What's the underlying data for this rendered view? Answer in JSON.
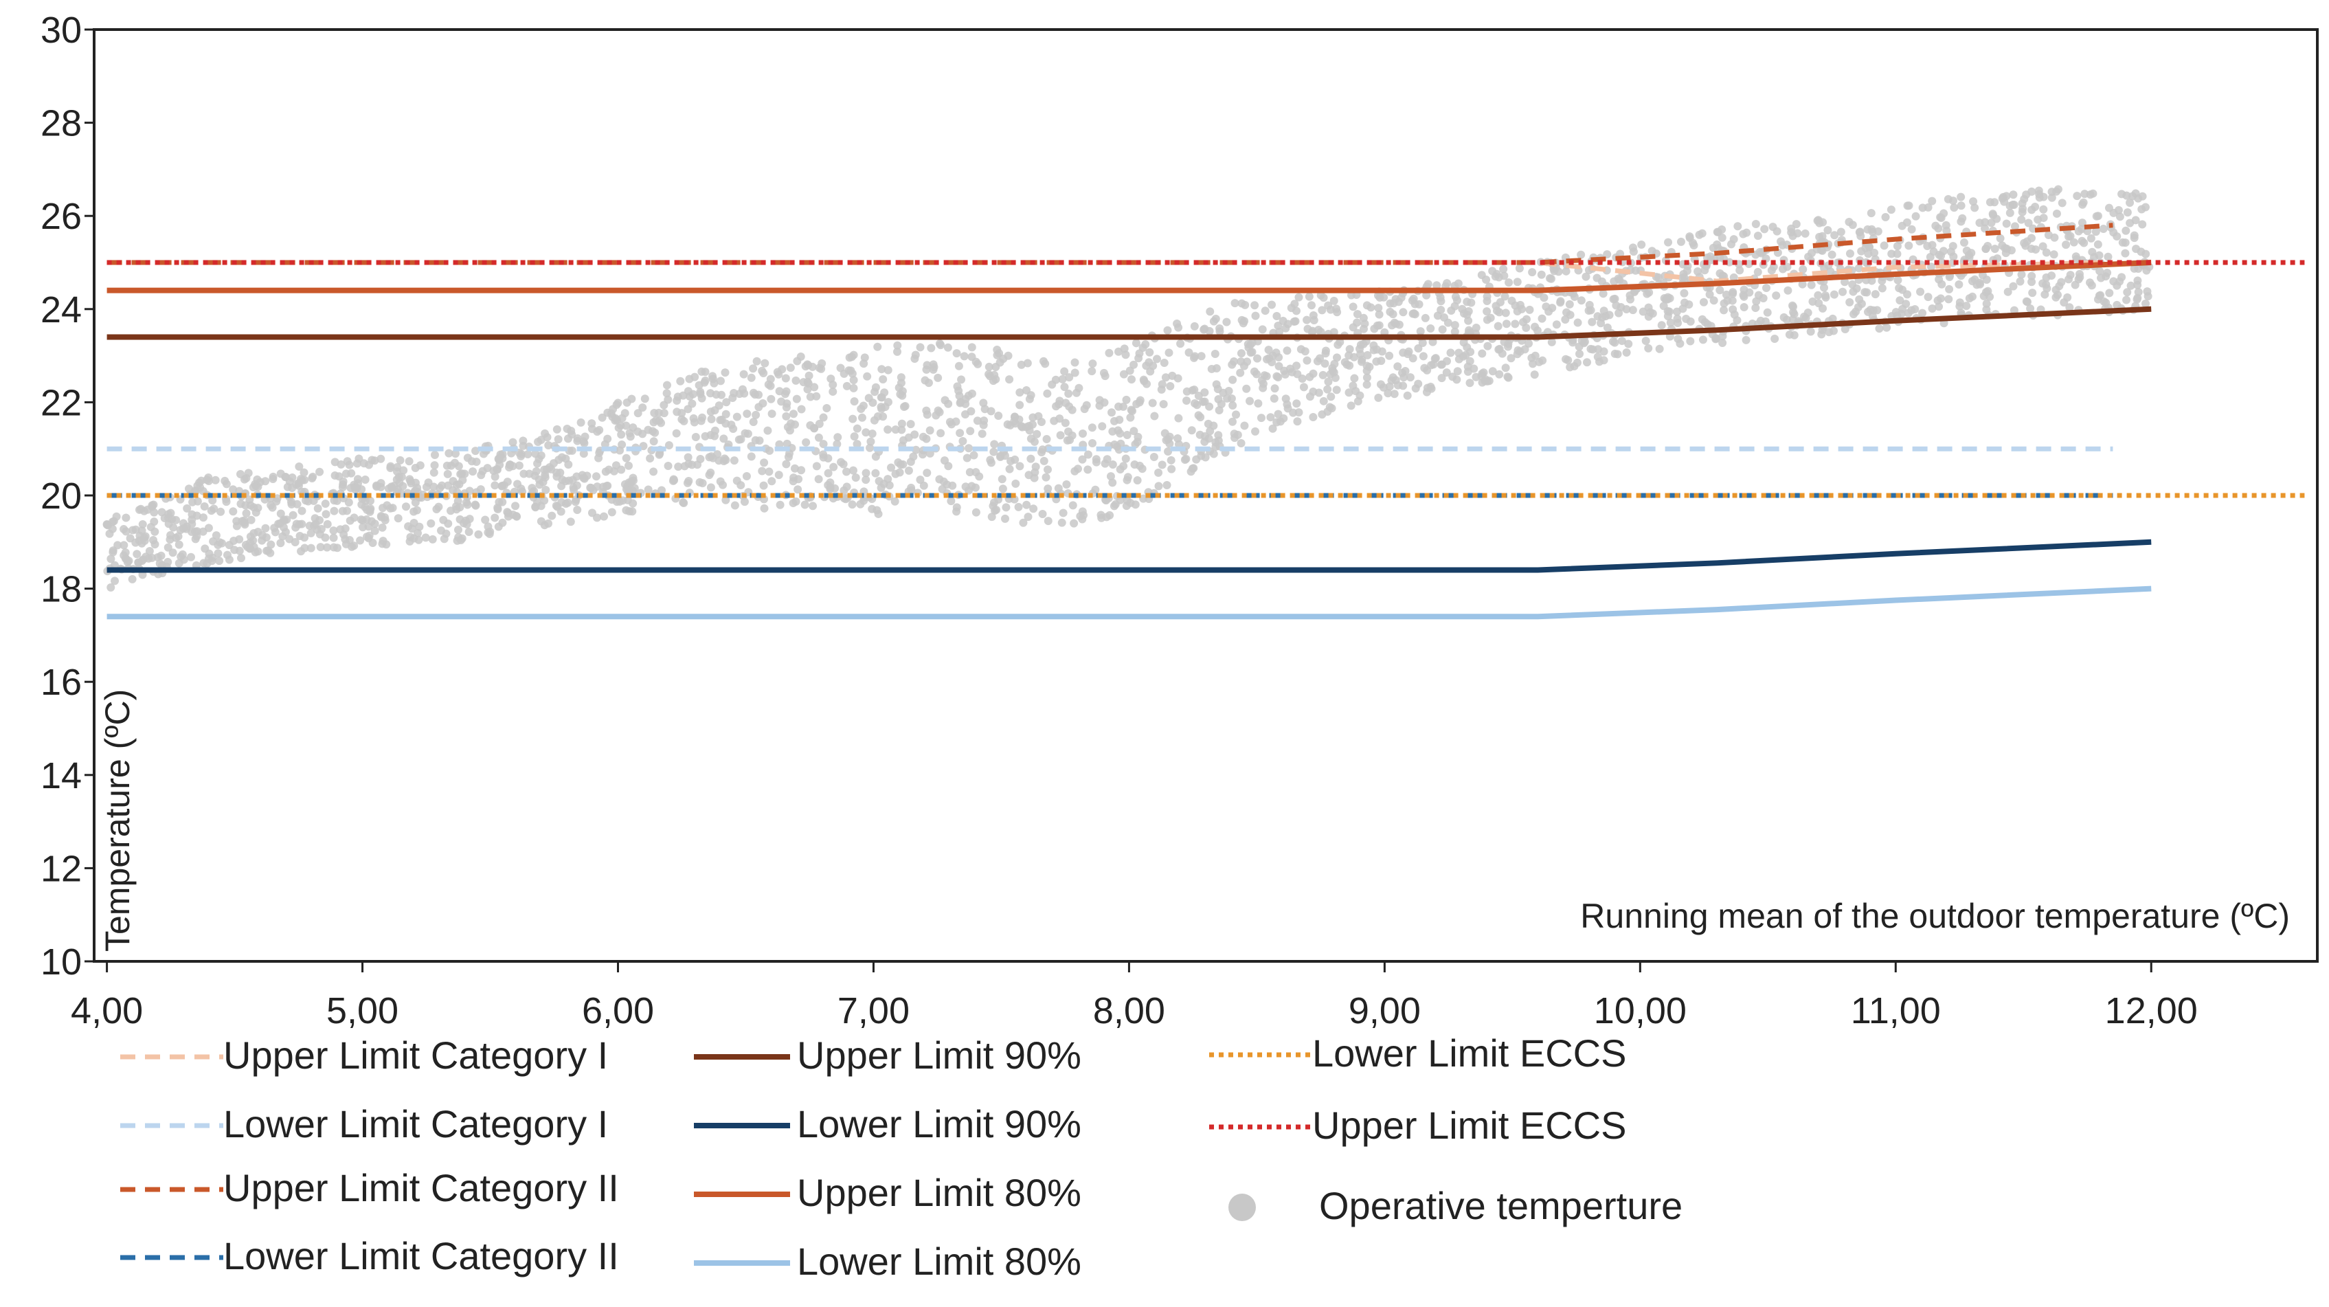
{
  "chart_data": {
    "type": "line",
    "title": "",
    "xlabel": "Running mean of the outdoor temperature (ºC)",
    "ylabel": "Temperature (ºC)",
    "xlim": [
      3.95,
      12.65
    ],
    "ylim": [
      10,
      30
    ],
    "x_ticks": [
      4,
      5,
      6,
      7,
      8,
      9,
      10,
      11,
      12
    ],
    "x_tick_labels": [
      "4,00",
      "5,00",
      "6,00",
      "7,00",
      "8,00",
      "9,00",
      "10,00",
      "11,00",
      "12,00"
    ],
    "y_ticks": [
      10,
      12,
      14,
      16,
      18,
      20,
      22,
      24,
      26,
      28,
      30
    ],
    "y_tick_labels": [
      "10",
      "12",
      "14",
      "16",
      "18",
      "20",
      "22",
      "24",
      "26",
      "28",
      "30"
    ],
    "series": [
      {
        "name": "Upper Limit Category I",
        "color": "#f3c3a6",
        "style": "dashed",
        "x": [
          4.0,
          9.6,
          10.3,
          11.0,
          11.85
        ],
        "y": [
          25.0,
          25.0,
          24.6,
          24.9,
          25.0
        ]
      },
      {
        "name": "Lower Limit Category I",
        "color": "#bcd5ee",
        "style": "dashed",
        "x": [
          4.0,
          11.85
        ],
        "y": [
          21.0,
          21.0
        ]
      },
      {
        "name": "Upper Limit Category II",
        "color": "#c9582a",
        "style": "dashed",
        "x": [
          4.0,
          9.6,
          10.3,
          11.0,
          11.85
        ],
        "y": [
          25.0,
          25.0,
          25.2,
          25.5,
          25.8
        ]
      },
      {
        "name": "Lower Limit Category II",
        "color": "#2a6ea8",
        "style": "dashed",
        "x": [
          4.0,
          11.85
        ],
        "y": [
          20.0,
          20.0
        ]
      },
      {
        "name": "Upper Limit 90%",
        "color": "#7a3519",
        "style": "solid",
        "x": [
          4.0,
          9.6,
          10.3,
          11.0,
          12.0
        ],
        "y": [
          23.4,
          23.4,
          23.55,
          23.75,
          24.0
        ]
      },
      {
        "name": "Lower Limit 90%",
        "color": "#173e66",
        "style": "solid",
        "x": [
          4.0,
          9.6,
          10.3,
          11.0,
          12.0
        ],
        "y": [
          18.4,
          18.4,
          18.55,
          18.75,
          19.0
        ]
      },
      {
        "name": "Upper Limit 80%",
        "color": "#c9582a",
        "style": "solid",
        "x": [
          4.0,
          9.6,
          10.3,
          11.0,
          12.0
        ],
        "y": [
          24.4,
          24.4,
          24.55,
          24.75,
          25.0
        ]
      },
      {
        "name": "Lower Limit 80%",
        "color": "#9cc3e6",
        "style": "solid",
        "x": [
          4.0,
          9.6,
          10.3,
          11.0,
          12.0
        ],
        "y": [
          17.4,
          17.4,
          17.55,
          17.75,
          18.0
        ]
      },
      {
        "name": "Lower Limit ECCS",
        "color": "#e8952b",
        "style": "dotted",
        "x": [
          4.0,
          12.6
        ],
        "y": [
          20.0,
          20.0
        ]
      },
      {
        "name": "Upper Limit ECCS",
        "color": "#d42a2a",
        "style": "dotted",
        "x": [
          4.0,
          12.6
        ],
        "y": [
          25.0,
          25.0
        ]
      }
    ],
    "scatter": {
      "name": "Operative temperture",
      "color": "#c8c8c8",
      "style": "markers",
      "x": [
        4.0,
        4.2,
        4.4,
        4.6,
        4.8,
        5.0,
        5.2,
        5.4,
        5.6,
        5.8,
        6.0,
        6.2,
        6.4,
        6.6,
        6.8,
        7.0,
        7.2,
        7.4,
        7.6,
        7.8,
        8.0,
        8.2,
        8.4,
        8.6,
        8.8,
        9.0,
        9.2,
        9.4,
        9.6,
        9.8,
        10.0,
        10.2,
        10.4,
        10.6,
        10.8,
        11.0,
        11.2,
        11.4,
        11.6,
        11.8,
        12.0
      ],
      "y_low": [
        18.0,
        18.3,
        18.5,
        18.7,
        18.8,
        18.9,
        19.0,
        19.0,
        19.3,
        19.4,
        19.6,
        19.7,
        19.8,
        19.7,
        19.7,
        19.6,
        19.5,
        19.4,
        19.4,
        19.4,
        19.6,
        20.3,
        21.0,
        21.5,
        21.8,
        22.0,
        22.2,
        22.4,
        22.6,
        22.8,
        23.0,
        23.2,
        23.3,
        23.4,
        23.5,
        23.6,
        23.7,
        23.8,
        23.8,
        23.9,
        24.0
      ],
      "y_high": [
        19.5,
        20.0,
        20.4,
        20.6,
        20.7,
        20.8,
        20.9,
        21.0,
        21.2,
        21.5,
        22.0,
        22.5,
        22.8,
        23.0,
        23.1,
        23.2,
        23.3,
        23.2,
        23.1,
        23.0,
        23.2,
        23.8,
        24.2,
        24.3,
        24.3,
        24.4,
        24.6,
        24.8,
        25.0,
        25.2,
        25.4,
        25.6,
        25.8,
        25.9,
        26.0,
        26.2,
        26.4,
        26.6,
        26.6,
        26.6,
        26.5
      ]
    },
    "legend": {
      "position": "bottom",
      "entries": [
        {
          "label": "Upper Limit Category I",
          "color": "#f3c3a6",
          "style": "dashed"
        },
        {
          "label": "Lower Limit Category I",
          "color": "#bcd5ee",
          "style": "dashed"
        },
        {
          "label": "Upper Limit Category II",
          "color": "#c9582a",
          "style": "dashed"
        },
        {
          "label": "Lower Limit Category II",
          "color": "#2a6ea8",
          "style": "dashed"
        },
        {
          "label": "Upper Limit 90%",
          "color": "#7a3519",
          "style": "solid"
        },
        {
          "label": "Lower Limit 90%",
          "color": "#173e66",
          "style": "solid"
        },
        {
          "label": "Upper Limit 80%",
          "color": "#c9582a",
          "style": "solid"
        },
        {
          "label": "Lower Limit 80%",
          "color": "#9cc3e6",
          "style": "solid"
        },
        {
          "label": "Lower Limit ECCS",
          "color": "#e8952b",
          "style": "dotted"
        },
        {
          "label": "Upper Limit ECCS",
          "color": "#d42a2a",
          "style": "dotted"
        },
        {
          "label": "Operative temperture",
          "color": "#c8c8c8",
          "style": "marker"
        }
      ]
    }
  }
}
